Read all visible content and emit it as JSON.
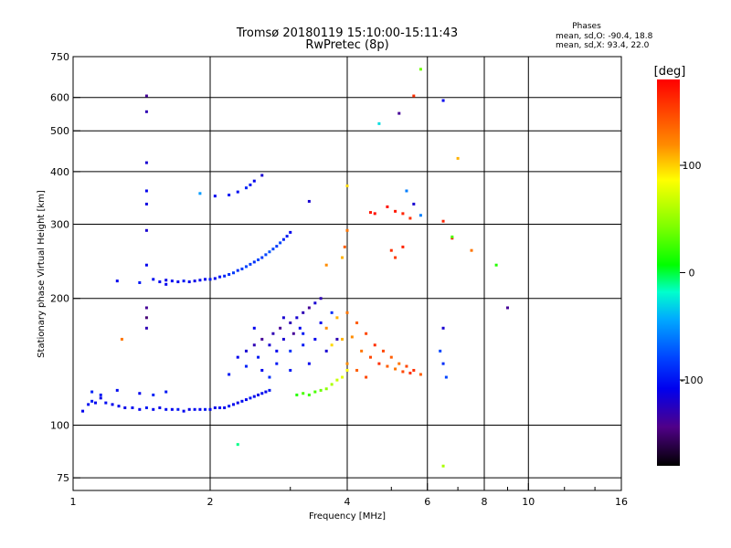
{
  "title": "Tromsø 20180119 15:10:00-15:11:43",
  "subtitle": "RwPretec (8p)",
  "phase_box": {
    "heading": "Phases",
    "line_o": "mean, sd,O: -90.4, 18.8",
    "line_x": "mean, sd,X:  93.4, 22.0"
  },
  "chart_data": {
    "type": "scatter",
    "title": "Tromsø 20180119 15:10:00-15:11:43",
    "subtitle": "RwPretec (8p)",
    "xlabel": "Frequency [MHz]",
    "ylabel": "Stationary phase Virtual Height [km]",
    "x_scale": "log",
    "y_scale": "log",
    "xlim": [
      1,
      16
    ],
    "ylim": [
      70,
      750
    ],
    "x_ticks": [
      1,
      2,
      4,
      6,
      8,
      10,
      16
    ],
    "x_tick_labels": [
      "1",
      "2",
      "4",
      "6",
      "8",
      "10",
      "16"
    ],
    "y_ticks": [
      75,
      100,
      200,
      300,
      400,
      500,
      600,
      750
    ],
    "y_tick_labels": [
      "75",
      "100",
      "200",
      "300",
      "400",
      "500",
      "600",
      "750"
    ],
    "grid": true,
    "colorbar": {
      "label": "[deg]",
      "range": [
        -180,
        180
      ],
      "ticks": [
        100,
        0,
        -100
      ],
      "tick_labels": [
        "100",
        "0",
        "-100"
      ]
    },
    "series": [
      {
        "points": [
          [
            1.05,
            108,
            -110
          ],
          [
            1.08,
            112,
            -105
          ],
          [
            1.1,
            114,
            -100
          ],
          [
            1.12,
            113,
            -108
          ],
          [
            1.15,
            116,
            -112
          ],
          [
            1.18,
            113,
            -105
          ],
          [
            1.22,
            112,
            -110
          ],
          [
            1.26,
            111,
            -108
          ],
          [
            1.3,
            110,
            -112
          ],
          [
            1.35,
            110,
            -105
          ],
          [
            1.4,
            109,
            -110
          ],
          [
            1.45,
            110,
            -100
          ],
          [
            1.5,
            109,
            -108
          ],
          [
            1.55,
            110,
            -112
          ],
          [
            1.6,
            109,
            -105
          ],
          [
            1.65,
            109,
            -110
          ],
          [
            1.7,
            109,
            -100
          ],
          [
            1.75,
            108,
            -108
          ],
          [
            1.8,
            109,
            -112
          ],
          [
            1.85,
            109,
            -105
          ],
          [
            1.9,
            109,
            -110
          ],
          [
            1.95,
            109,
            -100
          ],
          [
            2.0,
            109,
            -108
          ],
          [
            2.05,
            110,
            -112
          ],
          [
            2.1,
            110,
            -105
          ],
          [
            2.15,
            110,
            -110
          ],
          [
            2.2,
            111,
            -100
          ],
          [
            2.25,
            112,
            -108
          ],
          [
            2.3,
            113,
            -112
          ],
          [
            2.35,
            114,
            -105
          ],
          [
            2.4,
            115,
            -110
          ],
          [
            2.45,
            116,
            -100
          ],
          [
            2.5,
            117,
            -108
          ],
          [
            2.55,
            118,
            -112
          ],
          [
            2.6,
            119,
            -105
          ],
          [
            2.65,
            120,
            -110
          ],
          [
            2.7,
            121,
            -100
          ],
          [
            1.1,
            120,
            -95
          ],
          [
            1.15,
            118,
            -100
          ],
          [
            1.25,
            121,
            -105
          ],
          [
            1.4,
            119,
            -110
          ],
          [
            1.5,
            118,
            -95
          ],
          [
            1.6,
            120,
            -100
          ],
          [
            1.25,
            220,
            -110
          ],
          [
            1.4,
            218,
            -100
          ],
          [
            1.55,
            219,
            -108
          ],
          [
            1.6,
            221,
            -112
          ],
          [
            1.65,
            220,
            -105
          ],
          [
            1.7,
            219,
            -110
          ],
          [
            1.75,
            220,
            -100
          ],
          [
            1.8,
            219,
            -108
          ],
          [
            1.85,
            220,
            -112
          ],
          [
            1.9,
            221,
            -105
          ],
          [
            1.95,
            222,
            -110
          ],
          [
            2.0,
            222,
            -100
          ],
          [
            2.05,
            223,
            -108
          ],
          [
            2.1,
            225,
            -100
          ],
          [
            2.15,
            226,
            -95
          ],
          [
            2.2,
            228,
            -90
          ],
          [
            2.25,
            230,
            -85
          ],
          [
            2.3,
            233,
            -90
          ],
          [
            2.35,
            235,
            -85
          ],
          [
            2.4,
            238,
            -80
          ],
          [
            2.45,
            241,
            -85
          ],
          [
            2.5,
            244,
            -90
          ],
          [
            2.55,
            247,
            -80
          ],
          [
            2.6,
            250,
            -85
          ],
          [
            2.65,
            254,
            -80
          ],
          [
            2.7,
            258,
            -75
          ],
          [
            2.75,
            262,
            -80
          ],
          [
            2.8,
            266,
            -85
          ],
          [
            2.85,
            271,
            -80
          ],
          [
            2.9,
            276,
            -95
          ],
          [
            2.95,
            281,
            -100
          ],
          [
            3.0,
            287,
            -110
          ],
          [
            1.5,
            222,
            -105
          ],
          [
            1.6,
            216,
            -110
          ],
          [
            2.05,
            350,
            -110
          ],
          [
            2.2,
            352,
            -100
          ],
          [
            2.3,
            358,
            -105
          ],
          [
            2.4,
            366,
            -95
          ],
          [
            2.45,
            372,
            -100
          ],
          [
            2.5,
            380,
            -110
          ],
          [
            2.6,
            392,
            -120
          ],
          [
            2.3,
            145,
            -110
          ],
          [
            2.4,
            150,
            -120
          ],
          [
            2.5,
            155,
            -130
          ],
          [
            2.55,
            145,
            -100
          ],
          [
            2.6,
            160,
            -140
          ],
          [
            2.7,
            155,
            -120
          ],
          [
            2.75,
            165,
            -130
          ],
          [
            2.8,
            150,
            -110
          ],
          [
            2.85,
            170,
            -140
          ],
          [
            2.9,
            160,
            -120
          ],
          [
            3.0,
            175,
            -130
          ],
          [
            3.05,
            165,
            -140
          ],
          [
            3.1,
            180,
            -120
          ],
          [
            3.15,
            170,
            -110
          ],
          [
            3.2,
            185,
            -130
          ],
          [
            3.3,
            190,
            -140
          ],
          [
            3.4,
            195,
            -120
          ],
          [
            3.5,
            200,
            -130
          ],
          [
            2.6,
            135,
            -110
          ],
          [
            2.8,
            140,
            -100
          ],
          [
            3.0,
            150,
            -90
          ],
          [
            3.2,
            155,
            -100
          ],
          [
            3.4,
            160,
            -110
          ],
          [
            2.2,
            132,
            -100
          ],
          [
            2.4,
            138,
            -95
          ],
          [
            2.7,
            130,
            -90
          ],
          [
            3.0,
            135,
            -100
          ],
          [
            3.3,
            140,
            -110
          ],
          [
            3.6,
            150,
            -120
          ],
          [
            3.8,
            160,
            -130
          ],
          [
            2.5,
            170,
            -110
          ],
          [
            2.9,
            180,
            -120
          ],
          [
            3.2,
            165,
            -100
          ],
          [
            3.5,
            175,
            -110
          ],
          [
            3.7,
            185,
            -90
          ],
          [
            3.1,
            118,
            20
          ],
          [
            3.2,
            119,
            30
          ],
          [
            3.3,
            118,
            25
          ],
          [
            3.4,
            120,
            30
          ],
          [
            3.5,
            121,
            40
          ],
          [
            3.6,
            122,
            50
          ],
          [
            3.7,
            125,
            60
          ],
          [
            3.8,
            128,
            70
          ],
          [
            3.9,
            130,
            80
          ],
          [
            4.0,
            135,
            90
          ],
          [
            3.6,
            170,
            120
          ],
          [
            3.8,
            180,
            110
          ],
          [
            4.0,
            185,
            130
          ],
          [
            4.2,
            175,
            140
          ],
          [
            4.4,
            165,
            150
          ],
          [
            4.6,
            155,
            160
          ],
          [
            4.8,
            150,
            150
          ],
          [
            5.0,
            145,
            140
          ],
          [
            5.2,
            140,
            130
          ],
          [
            5.4,
            138,
            150
          ],
          [
            5.6,
            135,
            160
          ],
          [
            5.8,
            132,
            140
          ],
          [
            3.7,
            155,
            100
          ],
          [
            3.9,
            160,
            110
          ],
          [
            4.1,
            162,
            120
          ],
          [
            4.3,
            150,
            130
          ],
          [
            4.5,
            145,
            150
          ],
          [
            4.7,
            140,
            160
          ],
          [
            4.9,
            138,
            140
          ],
          [
            5.1,
            136,
            130
          ],
          [
            5.3,
            134,
            150
          ],
          [
            5.5,
            133,
            160
          ],
          [
            4.0,
            140,
            120
          ],
          [
            4.2,
            135,
            140
          ],
          [
            4.4,
            130,
            150
          ],
          [
            3.6,
            240,
            120
          ],
          [
            3.9,
            250,
            110
          ],
          [
            3.95,
            265,
            140
          ],
          [
            4.0,
            290,
            130
          ],
          [
            5.0,
            260,
            160
          ],
          [
            5.1,
            250,
            155
          ],
          [
            5.3,
            265,
            165
          ],
          [
            4.5,
            320,
            170
          ],
          [
            4.6,
            318,
            175
          ],
          [
            4.9,
            330,
            175
          ],
          [
            5.1,
            322,
            170
          ],
          [
            5.3,
            318,
            165
          ],
          [
            5.5,
            310,
            160
          ],
          [
            6.5,
            305,
            165
          ],
          [
            6.8,
            278,
            170
          ],
          [
            7.5,
            260,
            130
          ],
          [
            9.0,
            190,
            -140
          ],
          [
            8.5,
            240,
            20
          ],
          [
            6.8,
            280,
            30
          ],
          [
            1.45,
            605,
            -140
          ],
          [
            1.45,
            555,
            -130
          ],
          [
            1.45,
            420,
            -120
          ],
          [
            1.45,
            360,
            -110
          ],
          [
            1.45,
            335,
            -115
          ],
          [
            1.45,
            290,
            -120
          ],
          [
            1.45,
            240,
            -110
          ],
          [
            1.45,
            190,
            -140
          ],
          [
            1.45,
            180,
            -150
          ],
          [
            1.45,
            170,
            -130
          ],
          [
            5.6,
            605,
            160
          ],
          [
            5.8,
            700,
            40
          ],
          [
            4.7,
            520,
            -30
          ],
          [
            5.2,
            550,
            -140
          ],
          [
            6.5,
            590,
            -110
          ],
          [
            7.0,
            430,
            110
          ],
          [
            4.0,
            370,
            100
          ],
          [
            5.4,
            360,
            -60
          ],
          [
            5.6,
            335,
            -120
          ],
          [
            5.8,
            315,
            -60
          ],
          [
            1.9,
            355,
            -50
          ],
          [
            2.3,
            90,
            -10
          ],
          [
            6.5,
            80,
            60
          ],
          [
            6.5,
            170,
            -120
          ],
          [
            6.4,
            150,
            -80
          ],
          [
            6.5,
            140,
            -90
          ],
          [
            6.6,
            130,
            -80
          ],
          [
            3.3,
            340,
            -120
          ],
          [
            1.28,
            160,
            130
          ]
        ]
      }
    ]
  }
}
